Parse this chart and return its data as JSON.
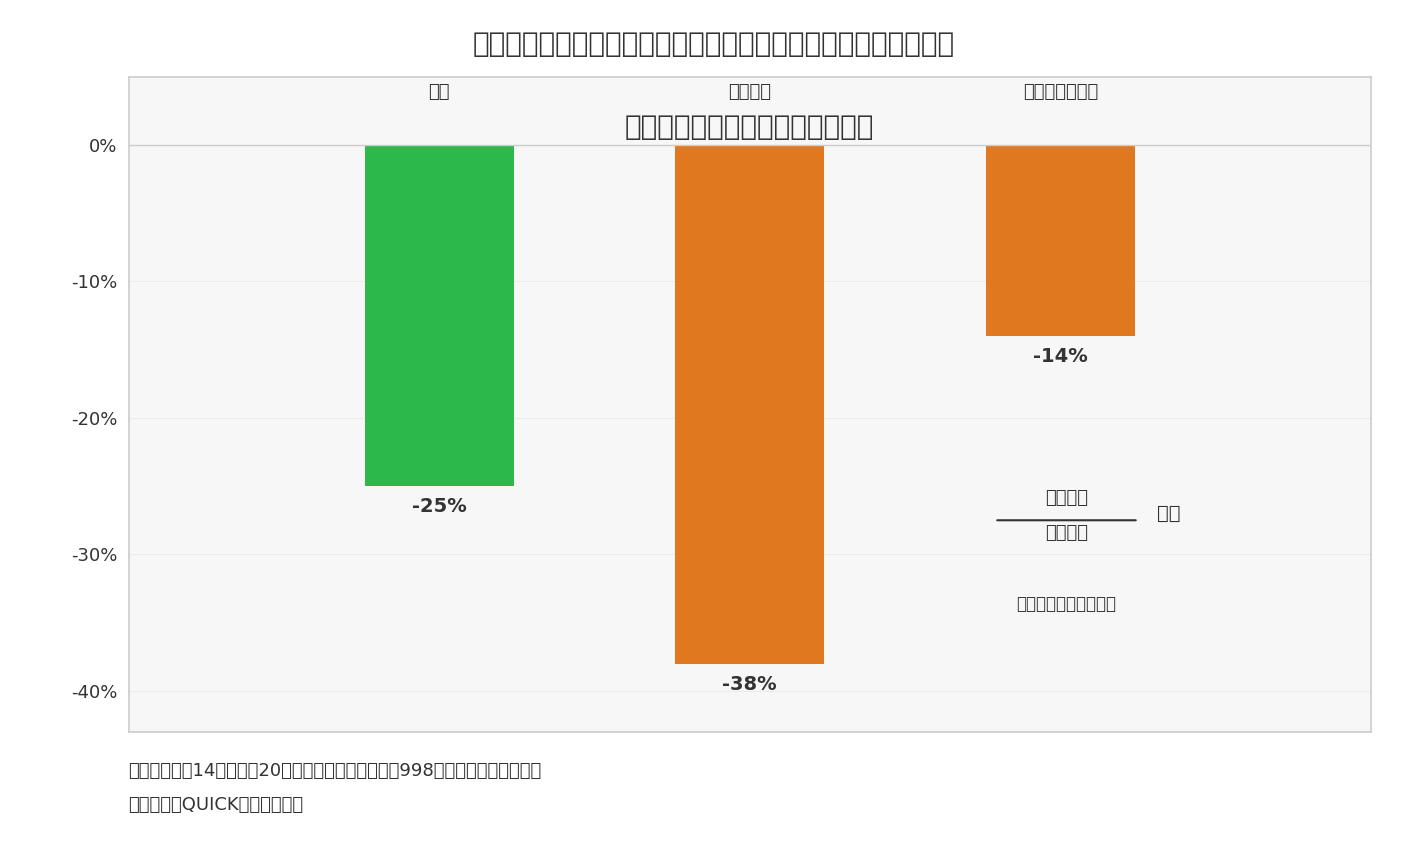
{
  "title": "予想経常利益（２０年３月期比）",
  "main_title": "【図表２】「今回開示」した企業は業績が大きく悪化する見通し",
  "categories": [
    "全体",
    "今回開示",
    "期初に開示済み"
  ],
  "values": [
    -25,
    -38,
    -14
  ],
  "bar_colors": [
    "#2db84b",
    "#e07820",
    "#e07820"
  ],
  "bar_width": 0.12,
  "ylim": [
    -43,
    5
  ],
  "yticks": [
    0,
    -10,
    -20,
    -30,
    -40
  ],
  "ytick_labels": [
    "0%",
    "-10%",
    "-20%",
    "-30%",
    "-40%"
  ],
  "value_labels": [
    "-25%",
    "-38%",
    "-14%"
  ],
  "note_line1": "（注）　８月14日時点で20年度予想を公表している998社（経常利益ベース）",
  "note_line2": "（資料）　QUICKより筆者作成",
  "formula_line1": "会社予想",
  "formula_line2": "前期実績",
  "formula_suffix": "－１",
  "formula_note": "（経常利益の合計額）",
  "background_color": "#ffffff",
  "chart_bg_color": "#f7f7f7",
  "border_color": "#cccccc",
  "text_color": "#333333",
  "grid_color": "#cccccc",
  "x_positions": [
    0.25,
    0.5,
    0.75
  ]
}
